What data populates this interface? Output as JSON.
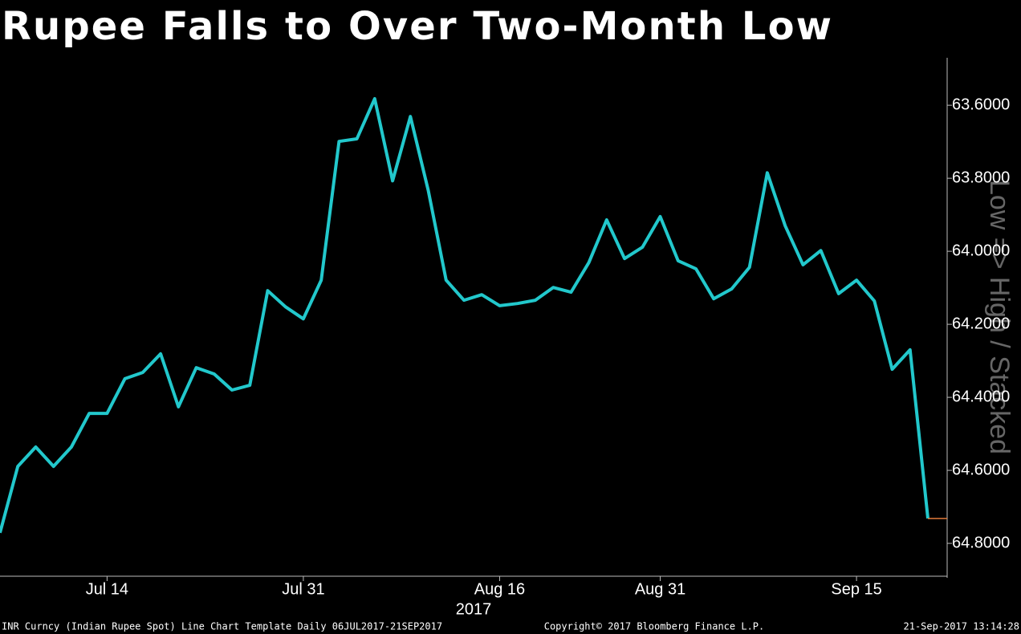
{
  "chart_data": {
    "type": "line",
    "title": "Rupee Falls to Over Two-Month Low",
    "y_axis_label": "Low => High / Stacked",
    "x_year_label": "2017",
    "footer_left": "INR Curncy (Indian Rupee Spot) Line Chart Template  Daily 06JUL2017-21SEP2017",
    "footer_center": "Copyright© 2017 Bloomberg Finance L.P.",
    "footer_right": "21-Sep-2017 13:14:28",
    "x": [
      "Jul 6",
      "Jul 7",
      "Jul 10",
      "Jul 11",
      "Jul 12",
      "Jul 13",
      "Jul 14",
      "Jul 17",
      "Jul 18",
      "Jul 19",
      "Jul 20",
      "Jul 21",
      "Jul 24",
      "Jul 25",
      "Jul 26",
      "Jul 27",
      "Jul 28",
      "Jul 31",
      "Aug 1",
      "Aug 2",
      "Aug 3",
      "Aug 4",
      "Aug 7",
      "Aug 8",
      "Aug 9",
      "Aug 10",
      "Aug 11",
      "Aug 14",
      "Aug 16",
      "Aug 18",
      "Aug 21",
      "Aug 22",
      "Aug 23",
      "Aug 24",
      "Aug 28",
      "Aug 29",
      "Aug 30",
      "Aug 31",
      "Sep 1",
      "Sep 4",
      "Sep 5",
      "Sep 6",
      "Sep 7",
      "Sep 8",
      "Sep 11",
      "Sep 12",
      "Sep 13",
      "Sep 14",
      "Sep 15",
      "Sep 18",
      "Sep 19",
      "Sep 20",
      "Sep 21"
    ],
    "series": [
      {
        "name": "INR Curncy",
        "color": "#22c8cc",
        "last_marker_color": "#e07a3a",
        "values": [
          64.771,
          64.589,
          64.536,
          64.589,
          64.536,
          64.444,
          64.444,
          64.349,
          64.332,
          64.281,
          64.426,
          64.319,
          64.336,
          64.38,
          64.367,
          64.108,
          64.152,
          64.185,
          64.079,
          63.699,
          63.692,
          63.582,
          63.807,
          63.631,
          63.833,
          64.079,
          64.134,
          64.119,
          64.149,
          64.143,
          64.134,
          64.099,
          64.112,
          64.031,
          63.914,
          64.02,
          63.989,
          63.905,
          64.026,
          64.048,
          64.13,
          64.103,
          64.044,
          63.785,
          63.93,
          64.037,
          63.998,
          64.116,
          64.079,
          64.136,
          64.323,
          64.27,
          64.732
        ]
      }
    ],
    "xticks": [
      "Jul 14",
      "Jul 31",
      "Aug 16",
      "Aug 31",
      "Sep 15"
    ],
    "ylim": [
      63.47,
      64.89
    ],
    "y_inverted": true,
    "yticks": [
      {
        "value": 63.6,
        "label": "63.6000"
      },
      {
        "value": 63.8,
        "label": "63.8000"
      },
      {
        "value": 64.0,
        "label": "64.0000"
      },
      {
        "value": 64.2,
        "label": "64.2000"
      },
      {
        "value": 64.4,
        "label": "64.4000"
      },
      {
        "value": 64.6,
        "label": "64.6000"
      },
      {
        "value": 64.8,
        "label": "64.8000"
      }
    ]
  }
}
